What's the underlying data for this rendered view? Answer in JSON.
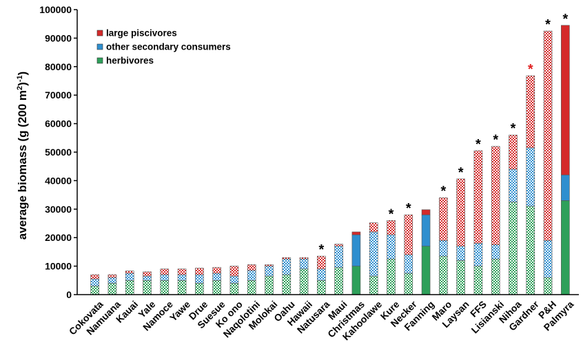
{
  "chart_data": {
    "type": "bar",
    "stacked": true,
    "ylabel": "average biomass (g (200 m²)⁻¹)",
    "ylabel_parts": {
      "main": "average biomass (g (200 m",
      "sup1": "2",
      "mid": ")",
      "sup2": "-1",
      "end": ")"
    },
    "ylim": [
      0,
      100000
    ],
    "yticks": [
      "0",
      "10000",
      "20000",
      "30000",
      "40000",
      "50000",
      "60000",
      "70000",
      "80000",
      "90000",
      "100000"
    ],
    "grid": false,
    "legend_position": "top-left",
    "categories": [
      "Cokovata",
      "Namuana",
      "Kauai",
      "Yale",
      "Namoce",
      "Yawe",
      "Drue",
      "Suesue",
      "Ko ono",
      "Naqolotini",
      "Molokai",
      "Oahu",
      "Hawaii",
      "Natusara",
      "Maui",
      "Christmas",
      "Kahoolawe",
      "Kure",
      "Necker",
      "Fanning",
      "Maro",
      "Laysan",
      "FFS",
      "Lisianski",
      "Nihoa",
      "Gardner",
      "P&H",
      "Palmyra"
    ],
    "series": [
      {
        "name": "herbivores",
        "color": "#2ea05a",
        "values": [
          3000,
          4000,
          5000,
          5000,
          5000,
          5000,
          4000,
          5000,
          4000,
          5000,
          6500,
          7000,
          9000,
          5000,
          9500,
          10000,
          6500,
          12500,
          7500,
          17000,
          13500,
          12000,
          10000,
          12500,
          32500,
          31000,
          6000,
          33000
        ]
      },
      {
        "name": "other secondary consumers",
        "color": "#2f8fcf",
        "values": [
          2500,
          2000,
          2500,
          1500,
          2000,
          2000,
          3000,
          2500,
          2500,
          3500,
          3500,
          5500,
          3500,
          4000,
          7500,
          11000,
          15500,
          8500,
          6500,
          11000,
          5500,
          5000,
          8000,
          5000,
          11500,
          20500,
          13000,
          9000
        ]
      },
      {
        "name": "large piscivores",
        "color": "#d42a2a",
        "values": [
          1500,
          1000,
          800,
          1500,
          2000,
          2000,
          2300,
          2000,
          3500,
          2000,
          500,
          500,
          500,
          4500,
          700,
          1000,
          3200,
          5000,
          14000,
          1800,
          15000,
          23600,
          32500,
          34500,
          12000,
          25300,
          73500,
          52500
        ]
      }
    ],
    "solid_categories": [
      "Christmas",
      "Fanning",
      "Palmyra"
    ],
    "annotations": [
      {
        "category": "Natusara",
        "text": "*",
        "color": "#000000"
      },
      {
        "category": "Kure",
        "text": "*",
        "color": "#000000"
      },
      {
        "category": "Necker",
        "text": "*",
        "color": "#000000"
      },
      {
        "category": "Maro",
        "text": "*",
        "color": "#000000"
      },
      {
        "category": "Laysan",
        "text": "*",
        "color": "#000000"
      },
      {
        "category": "FFS",
        "text": "*",
        "color": "#000000"
      },
      {
        "category": "Lisianski",
        "text": "*",
        "color": "#000000"
      },
      {
        "category": "Nihoa",
        "text": "*",
        "color": "#000000"
      },
      {
        "category": "Gardner",
        "text": "*",
        "color": "#e02020"
      },
      {
        "category": "P&H",
        "text": "*",
        "color": "#000000"
      },
      {
        "category": "Palmyra",
        "text": "*",
        "color": "#000000"
      }
    ]
  }
}
